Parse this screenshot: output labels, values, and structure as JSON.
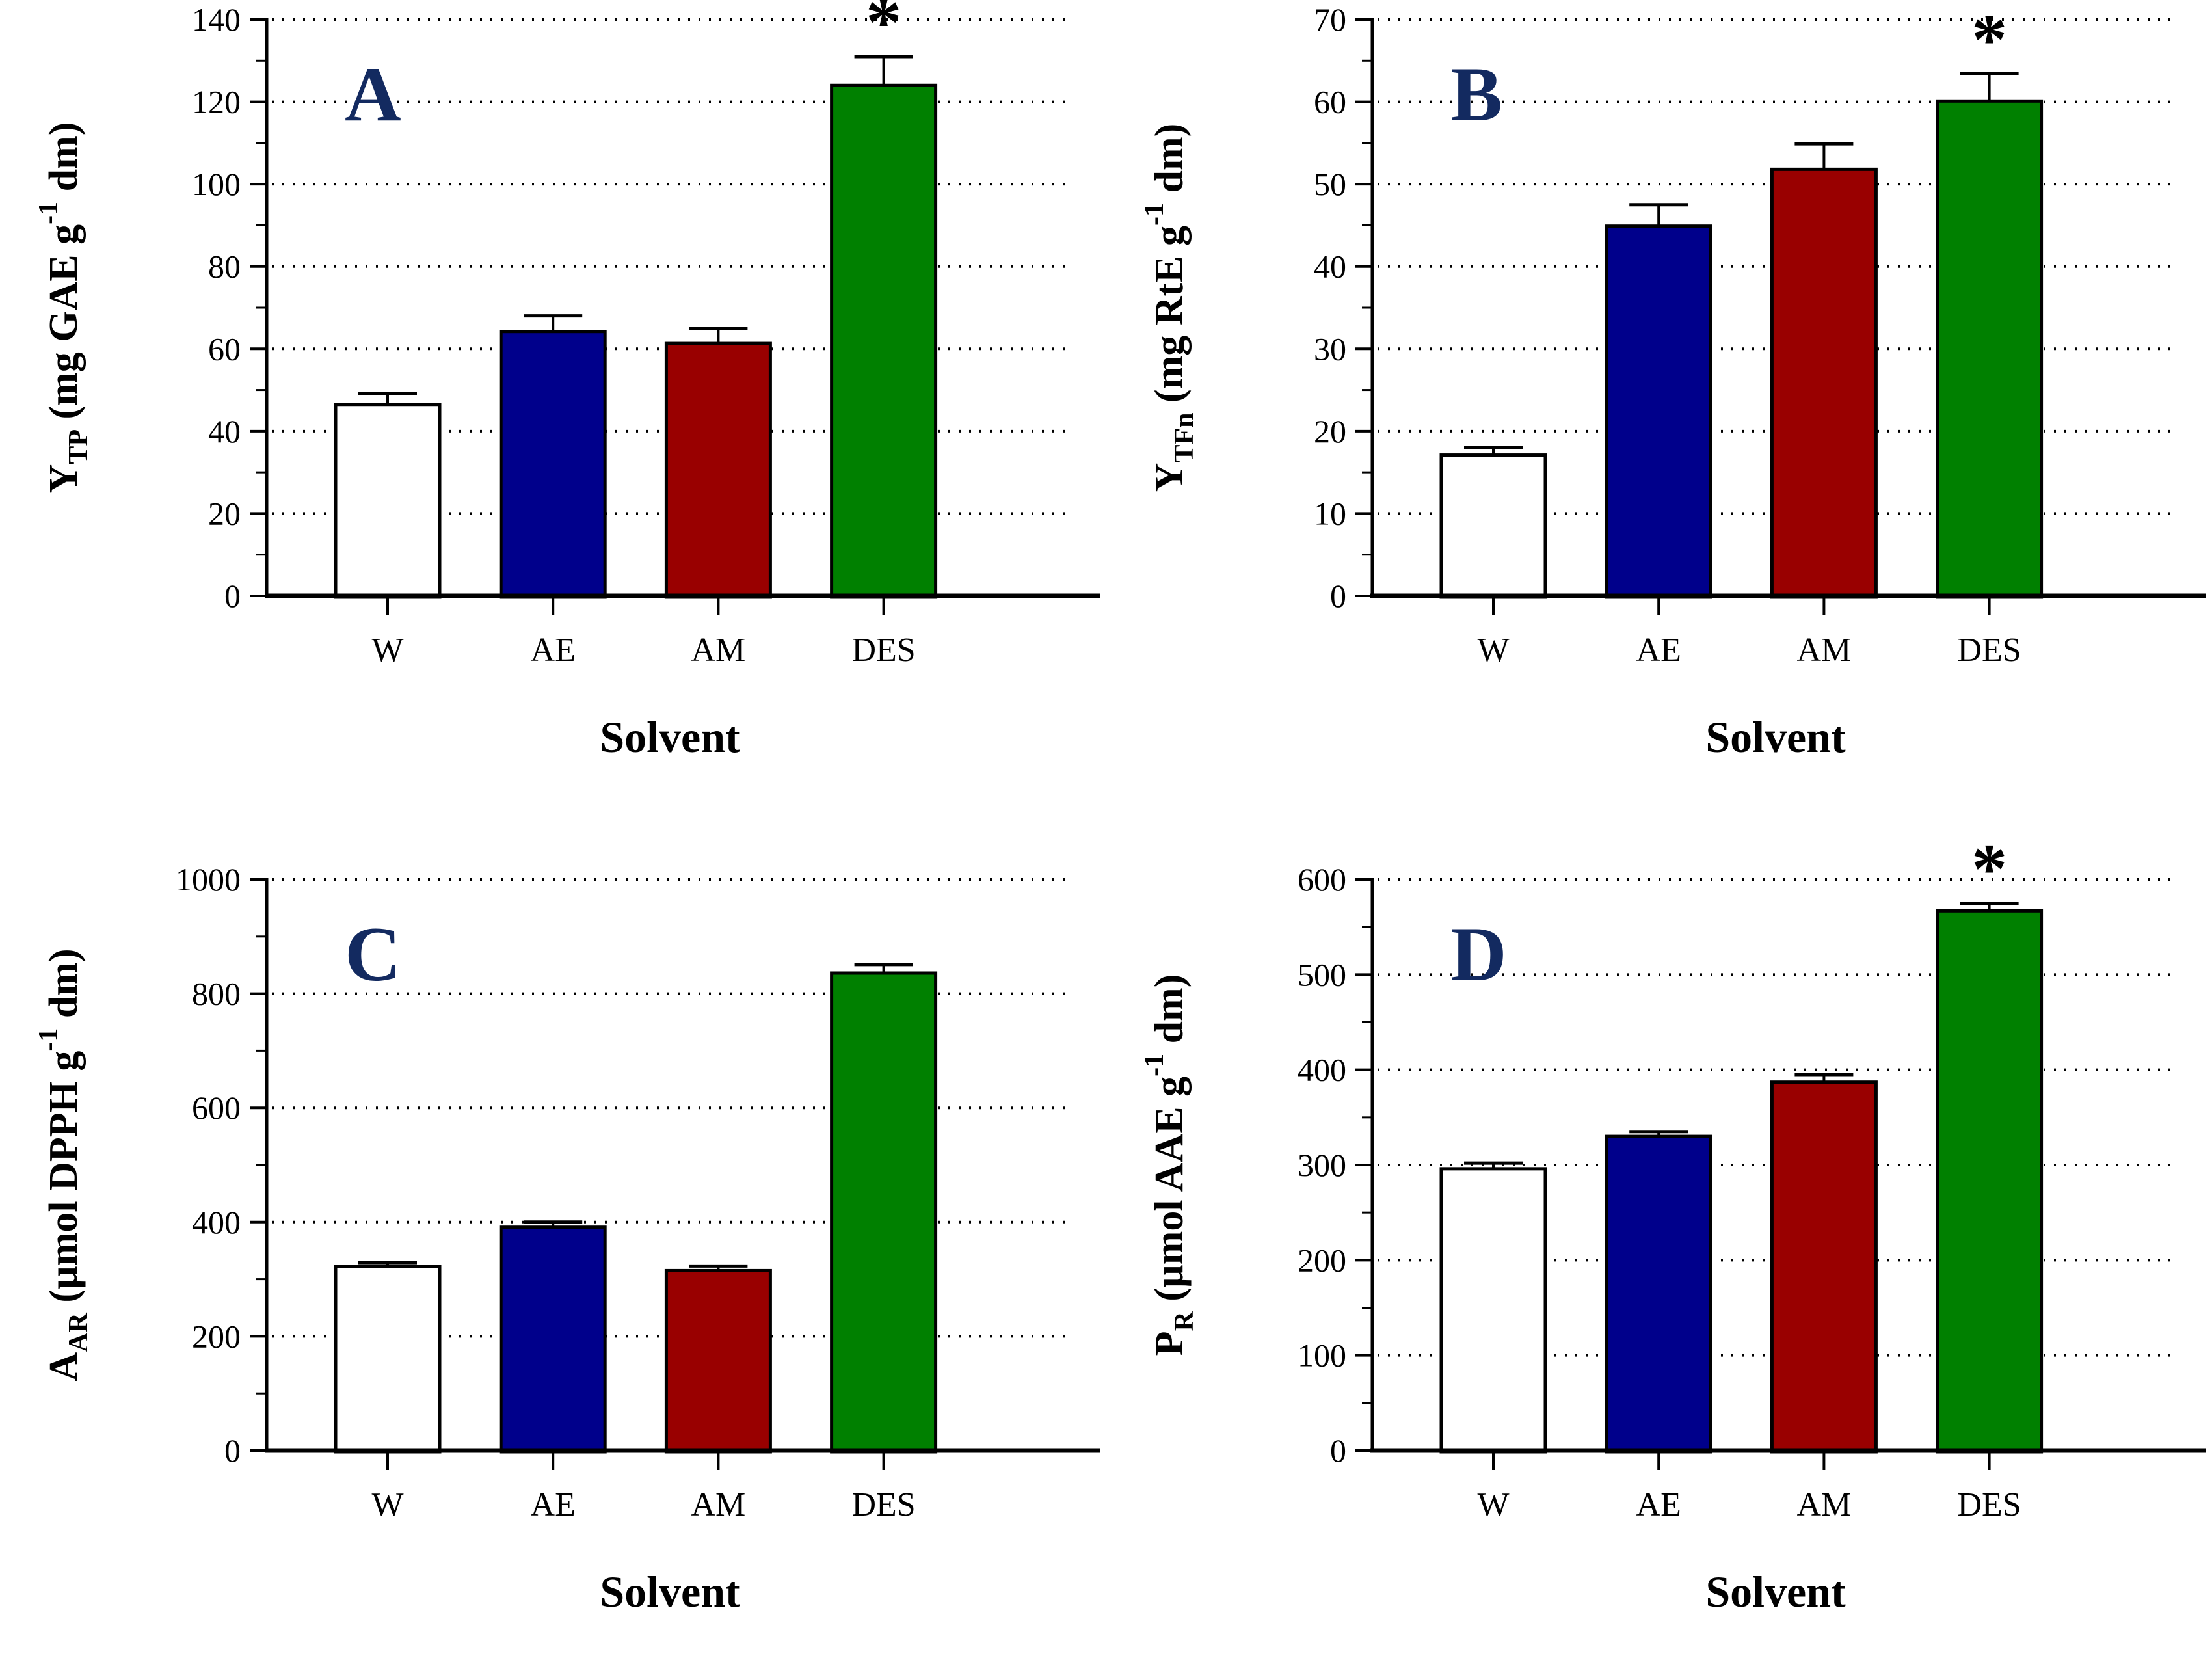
{
  "figure": {
    "background": "#ffffff",
    "panel_letter_color": "#132a60",
    "axis_color": "#000000",
    "grid_style": "dotted",
    "significance_marker": "*"
  },
  "chart_data": [
    {
      "type": "bar",
      "panel_letter": "A",
      "ylabel": "YTP (mg GAE g-1 dm)",
      "ylabel_parts": [
        {
          "t": "Y"
        },
        {
          "t": "TP",
          "style": "sub"
        },
        {
          "t": " (mg GAE g"
        },
        {
          "t": "-1",
          "style": "sup"
        },
        {
          "t": " dm)"
        }
      ],
      "xlabel": "Solvent",
      "categories": [
        "W",
        "AE",
        "AM",
        "DES"
      ],
      "values": [
        46.5,
        64.2,
        61.3,
        124
      ],
      "errors": [
        2.7,
        3.8,
        3.6,
        7
      ],
      "significant": [
        false,
        false,
        false,
        true
      ],
      "ylim": [
        0,
        140
      ],
      "ytick_step": 20,
      "bar_colors": [
        "#FFFFFF",
        "#00008B",
        "#990000",
        "#008000"
      ],
      "grid": true,
      "legend": "none"
    },
    {
      "type": "bar",
      "panel_letter": "B",
      "ylabel": "YTFn (mg RtE g-1 dm)",
      "ylabel_parts": [
        {
          "t": "Y"
        },
        {
          "t": "TFn",
          "style": "sub"
        },
        {
          "t": " (mg RtE g"
        },
        {
          "t": "-1",
          "style": "sup"
        },
        {
          "t": " dm)"
        }
      ],
      "xlabel": "Solvent",
      "categories": [
        "W",
        "AE",
        "AM",
        "DES"
      ],
      "values": [
        17.1,
        44.9,
        51.8,
        60.1
      ],
      "errors": [
        0.9,
        2.6,
        3.1,
        3.3
      ],
      "significant": [
        false,
        false,
        false,
        true
      ],
      "ylim": [
        0,
        70
      ],
      "ytick_step": 10,
      "bar_colors": [
        "#FFFFFF",
        "#00008B",
        "#990000",
        "#008000"
      ],
      "grid": true,
      "legend": "none"
    },
    {
      "type": "bar",
      "panel_letter": "C",
      "ylabel": "AAR (µmol DPPH g-1 dm)",
      "ylabel_parts": [
        {
          "t": "A"
        },
        {
          "t": "AR",
          "style": "sub"
        },
        {
          "t": " (µmol DPPH g"
        },
        {
          "t": "-1",
          "style": "sup"
        },
        {
          "t": " dm)"
        }
      ],
      "xlabel": "Solvent",
      "categories": [
        "W",
        "AE",
        "AM",
        "DES"
      ],
      "values": [
        322,
        391,
        315,
        836
      ],
      "errors": [
        7,
        9,
        8,
        15
      ],
      "significant": [
        false,
        false,
        false,
        false
      ],
      "ylim": [
        0,
        1000
      ],
      "ytick_step": 200,
      "bar_colors": [
        "#FFFFFF",
        "#00008B",
        "#990000",
        "#008000"
      ],
      "grid": true,
      "legend": "none"
    },
    {
      "type": "bar",
      "panel_letter": "D",
      "ylabel": "PR (µmol AAE g-1 dm)",
      "ylabel_parts": [
        {
          "t": "P"
        },
        {
          "t": "R",
          "style": "sub"
        },
        {
          "t": " (µmol AAE g"
        },
        {
          "t": "-1",
          "style": "sup"
        },
        {
          "t": " dm)"
        }
      ],
      "xlabel": "Solvent",
      "categories": [
        "W",
        "AE",
        "AM",
        "DES"
      ],
      "values": [
        296,
        330,
        387,
        567
      ],
      "errors": [
        6,
        5,
        8,
        8
      ],
      "significant": [
        false,
        false,
        false,
        true
      ],
      "ylim": [
        0,
        600
      ],
      "ytick_step": 100,
      "bar_colors": [
        "#FFFFFF",
        "#00008B",
        "#990000",
        "#008000"
      ],
      "grid": true,
      "legend": "none"
    }
  ]
}
